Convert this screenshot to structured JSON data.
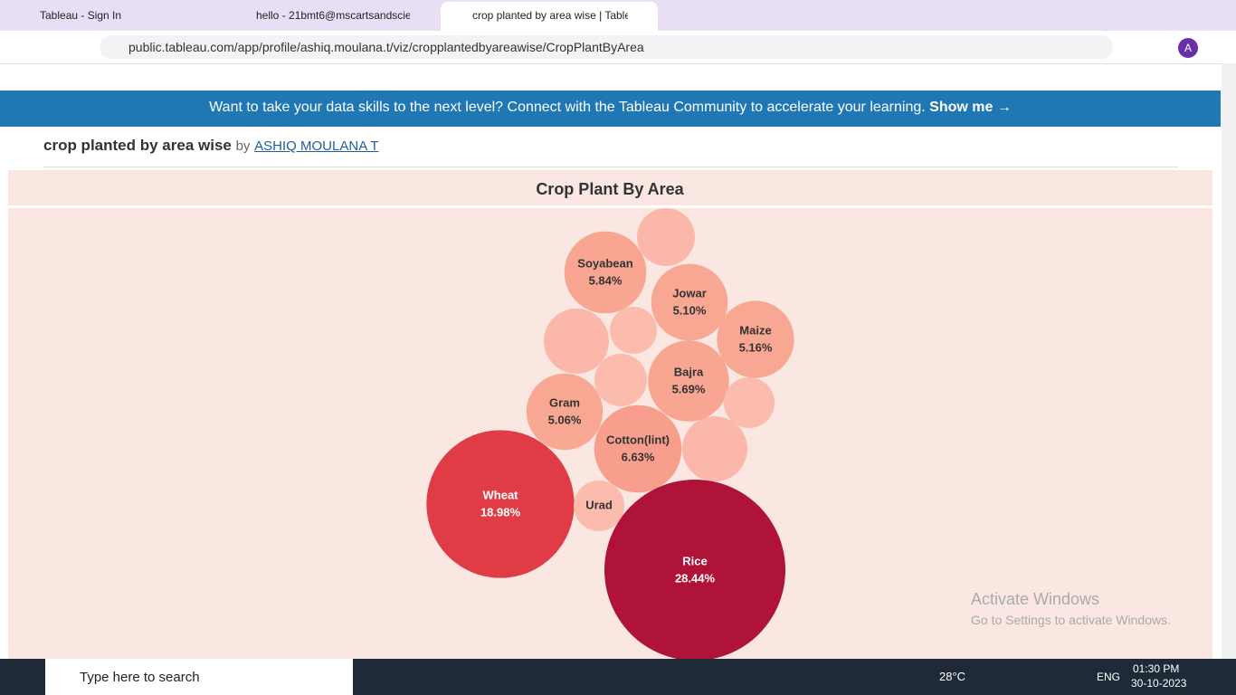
{
  "browser": {
    "tabs": [
      "Tableau - Sign In",
      "hello - 21bmt6@mscartsandscie",
      "crop planted by area wise | Table"
    ],
    "url": "public.tableau.com/app/profile/ashiq.moulana.t/viz/cropplantedbyareawise/CropPlantByArea"
  },
  "banner": {
    "text": "Want to take your data skills to the next level? Connect with the Tableau Community to accelerate your learning.",
    "link": "Show me →"
  },
  "viz_header": {
    "title": "crop planted by area wise",
    "by": "by",
    "author": "ASHIQ MOULANA T"
  },
  "chart_data": {
    "type": "packed-bubble",
    "title": "Crop Plant By Area",
    "categories": [
      null,
      "Soyabean",
      "Jowar",
      "Maize",
      null,
      null,
      "Bajra",
      null,
      null,
      "Gram",
      "Cotton(lint)",
      null,
      "Wheat",
      "Urad",
      "Rice"
    ],
    "values": [
      2.91,
      5.84,
      5.1,
      5.16,
      3.69,
      1.92,
      5.69,
      2.39,
      2.23,
      5.06,
      6.63,
      3.69,
      18.98,
      2.23,
      28.44
    ],
    "value_labels": [
      null,
      "5.84%",
      "5.10%",
      "5.16%",
      null,
      null,
      "5.69%",
      null,
      null,
      "5.06%",
      "6.63%",
      null,
      "18.98%",
      null,
      "28.44%"
    ],
    "colors": [
      "#fbb8aa",
      "#f8a592",
      "#f8a793",
      "#f8a793",
      "#fbb8aa",
      "#fbbcae",
      "#f8a592",
      "#fbbbad",
      "#fbbcae",
      "#f8a793",
      "#f79f8c",
      "#fbb8aa",
      "#e03c46",
      "#fbbcae",
      "#b01339"
    ]
  },
  "watermark": {
    "title": "Activate Windows",
    "subtitle": "Go to Settings to activate Windows."
  },
  "taskbar": {
    "search": "Type here to search",
    "weather": "28°C",
    "lang": "ENG",
    "time": "01:30 PM",
    "date": "30-10-2023"
  }
}
